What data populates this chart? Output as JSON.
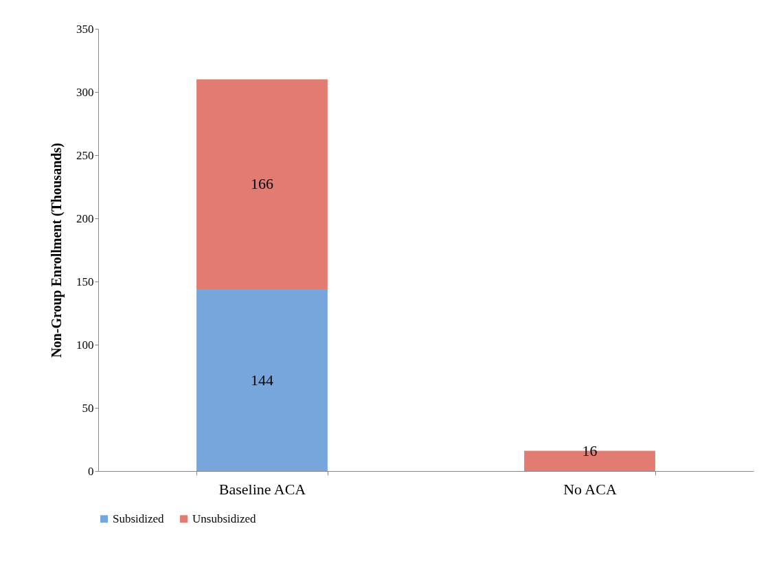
{
  "chart_data": {
    "type": "bar",
    "stacked": true,
    "ylabel": "Non-Group Enrollment (Thousands)",
    "categories": [
      "Baseline ACA",
      "No ACA"
    ],
    "series": [
      {
        "name": "Subsidized",
        "color": "#77a6dc",
        "values": [
          144,
          null
        ]
      },
      {
        "name": "Unsubsidized",
        "color": "#e27b72",
        "values": [
          166,
          16
        ]
      }
    ],
    "ylim": [
      0,
      350
    ],
    "yticks": [
      0,
      50,
      100,
      150,
      200,
      250,
      300,
      350
    ],
    "data_labels": true,
    "grid": false,
    "legend": "bottom"
  }
}
